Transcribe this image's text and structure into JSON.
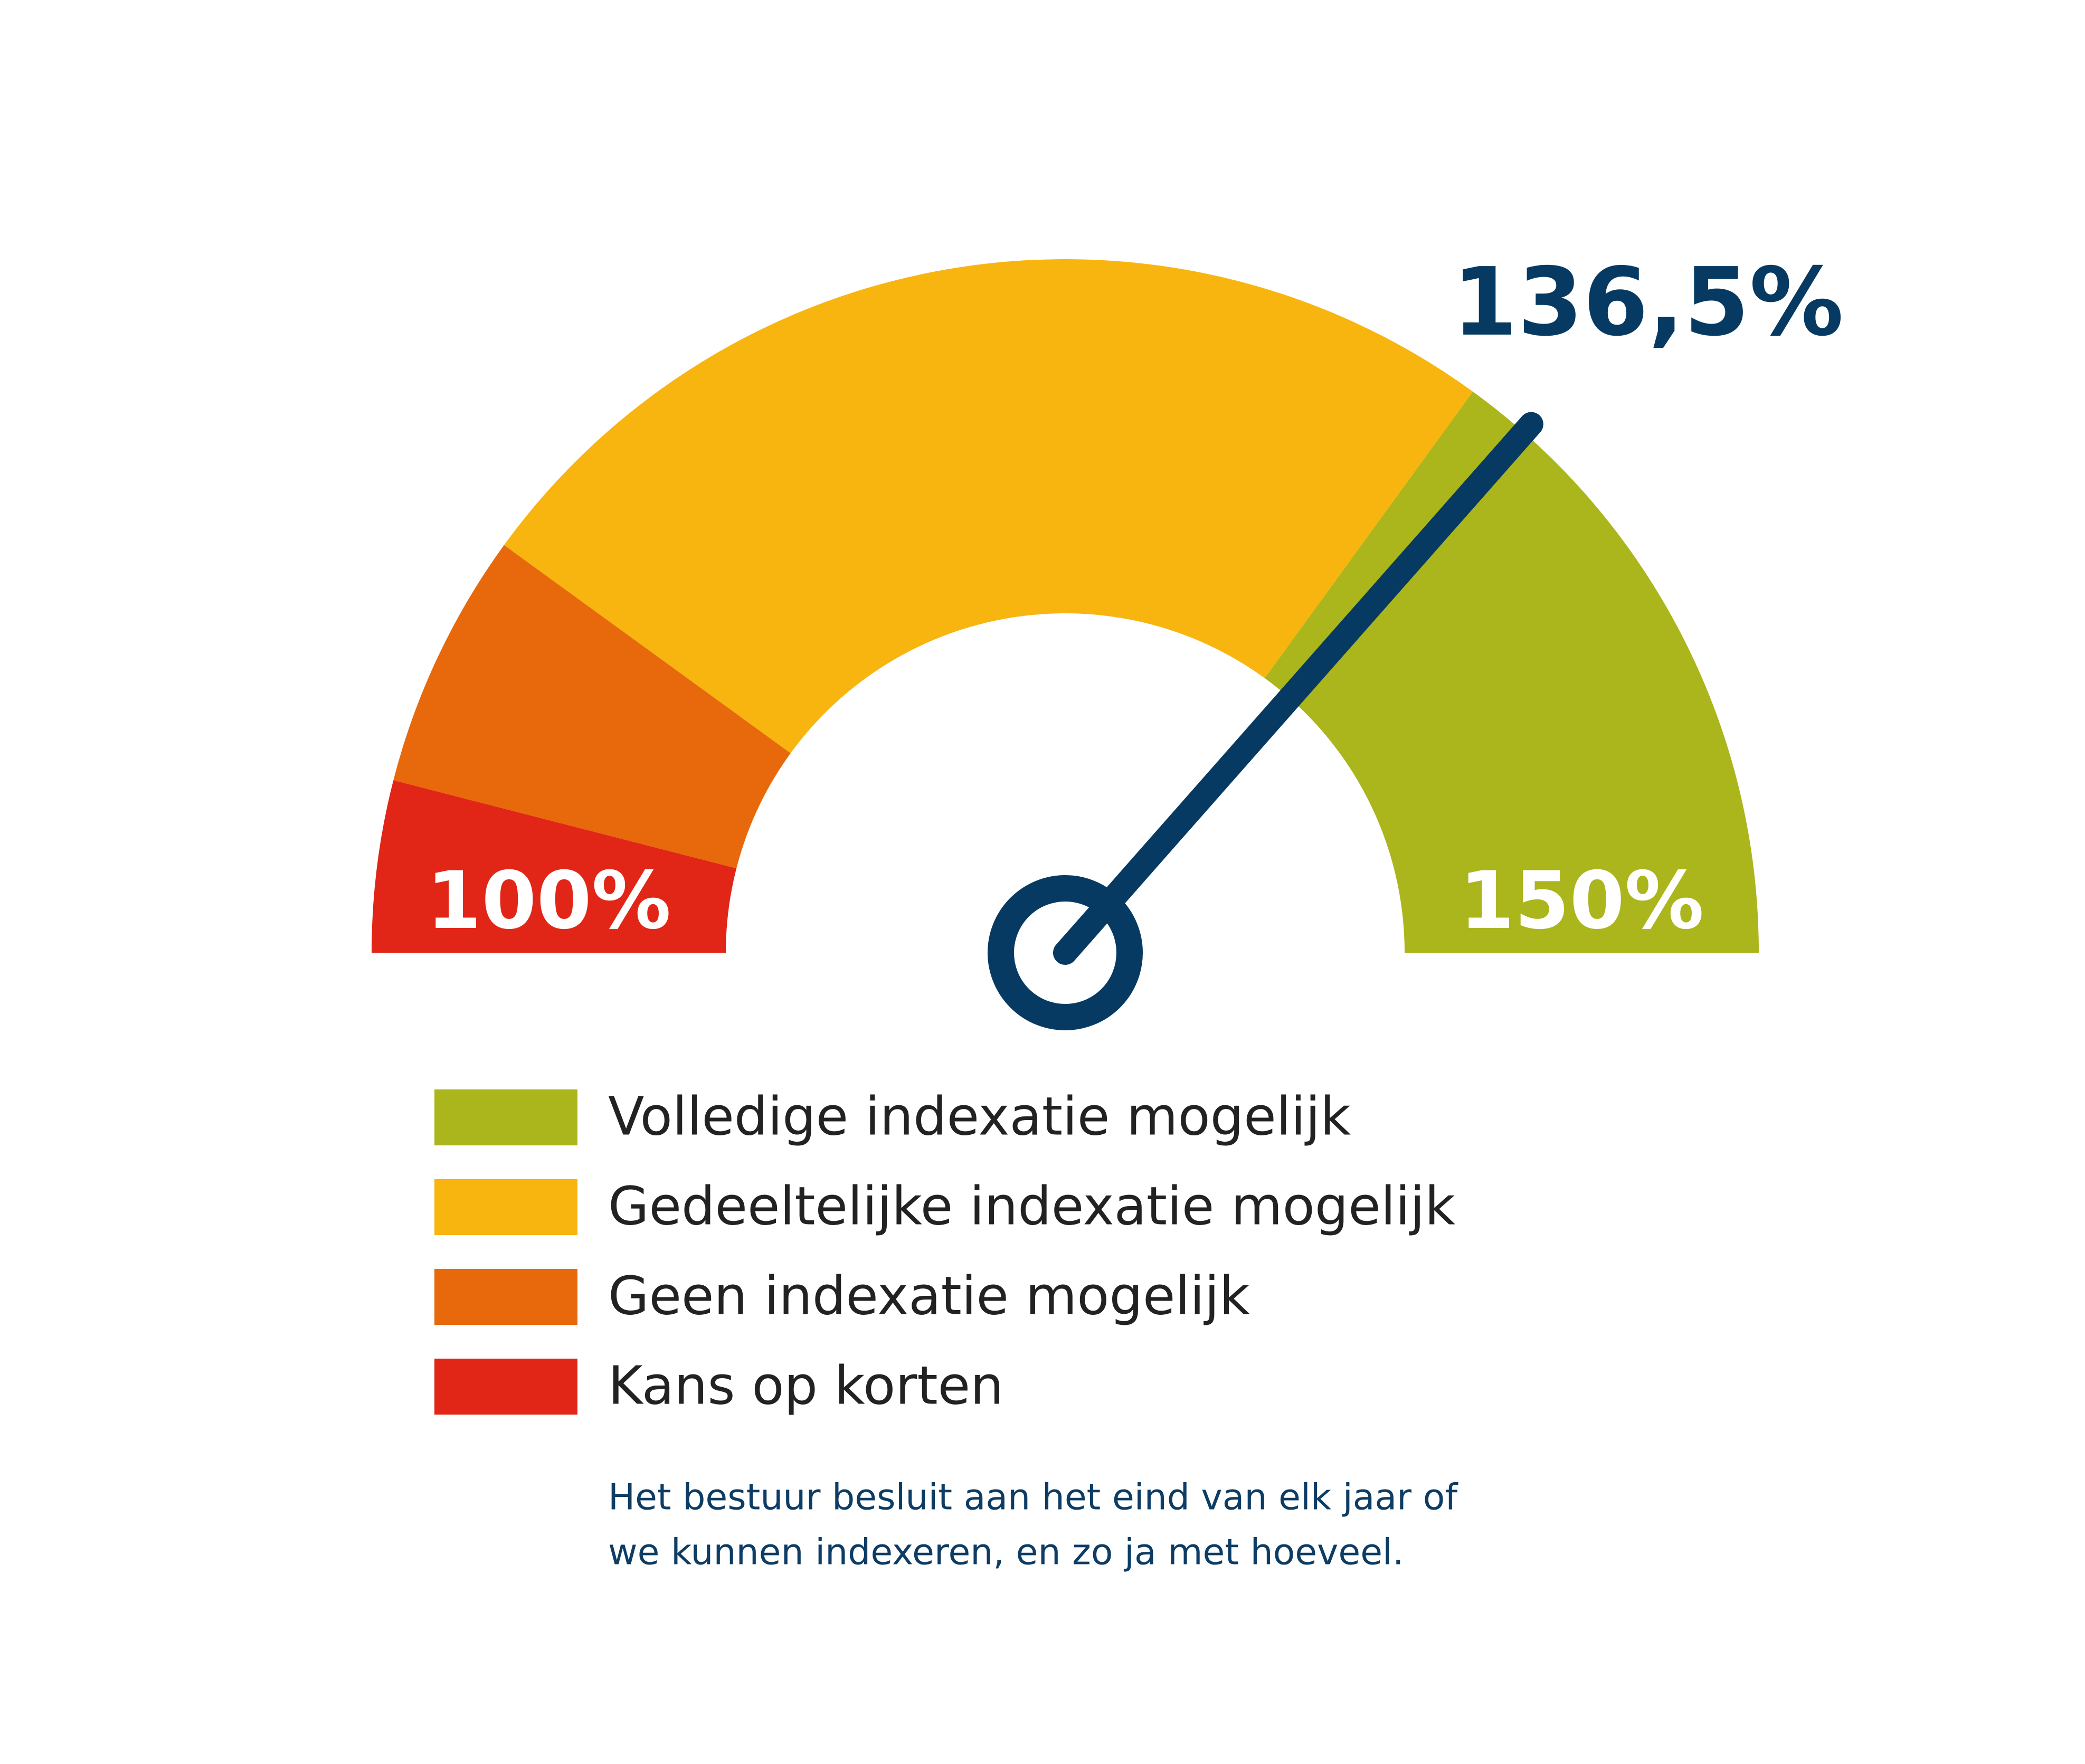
{
  "chart_data": {
    "type": "gauge",
    "ylim": [
      100,
      150
    ],
    "yticks": [
      {
        "value": 100,
        "label": "100%"
      },
      {
        "value": 150,
        "label": "150%"
      }
    ],
    "value": 136.5,
    "value_label": "136,5%",
    "needle_color": "#063a62",
    "series": [
      {
        "name": "Volledige indexatie mogelijk",
        "color": "#abb51c",
        "from": 135
      },
      {
        "name": "Gedeeltelijke indexatie mogelijk",
        "color": "#f8b50f",
        "from": 110
      },
      {
        "name": "Geen indexatie mogelijk",
        "color": "#e8690b",
        "from": 104
      },
      {
        "name": "Kans op korten",
        "color": "#e12617",
        "from": 100
      }
    ],
    "note": [
      "Het bestuur besluit aan het eind van elk jaar of",
      "we kunnen indexeren, en zo ja met hoeveel."
    ]
  }
}
